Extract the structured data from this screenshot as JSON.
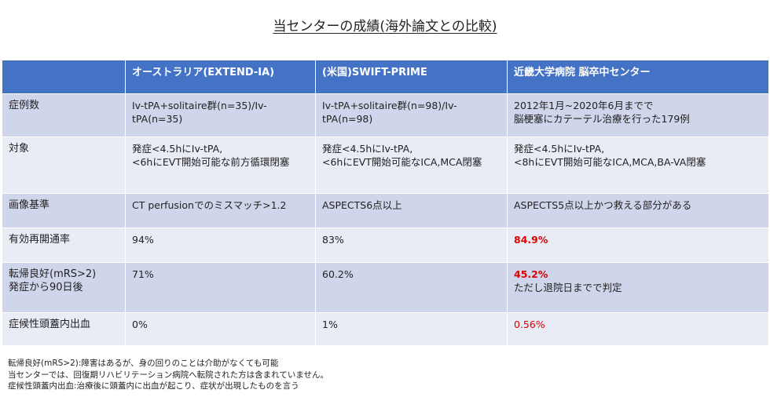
{
  "title": "当センターの成績(海外論文との比較)",
  "table": {
    "headers": [
      "",
      "オーストラリア(EXTEND-IA)",
      "(米国)SWIFT-PRIME",
      "近畿大学病院 脳卒中センター"
    ],
    "rows": [
      {
        "label": "症例数",
        "extend": "Iv-tPA+solitaire群(n=35)/Iv-tPA(n=35)",
        "swift": "Iv-tPA+solitaire群(n=98)/Iv-tPA(n=98)",
        "kindai": "2012年1月~2020年6月までで",
        "kindai2": "脳梗塞にカテーテル治療を行った179例"
      },
      {
        "label": "対象",
        "extend": "発症<4.5hにIv-tPA,",
        "extend2": "<6hにEVT開始可能な前方循環閉塞",
        "swift": "発症<4.5hにIv-tPA,",
        "swift2": "<6hにEVT開始可能なICA,MCA閉塞",
        "kindai": "発症<4.5hにIv-tPA,",
        "kindai2": "<8hにEVT開始可能なICA,MCA,BA-VA閉塞"
      },
      {
        "label": "画像基準",
        "extend": "CT perfusionでのミスマッチ>1.2",
        "swift": "ASPECTS6点以上",
        "kindai": "ASPECTS5点以上かつ救える部分がある"
      },
      {
        "label": "有効再開通率",
        "extend": "94%",
        "swift": "83%",
        "kindai": "84.9%"
      },
      {
        "label": "転帰良好(mRS>2)",
        "label2": "発症から90日後",
        "extend": "71%",
        "swift": "60.2%",
        "kindai": "45.2%",
        "kindai2": "ただし退院日までで判定"
      },
      {
        "label": "症候性頭蓋内出血",
        "extend": "0%",
        "swift": "1%",
        "kindai": "0.56%"
      }
    ]
  },
  "notes": [
    "転帰良好(mRS>2):障害はあるが、身の回りのことは介助がなくても可能",
    "当センターでは、回復期リハビリテーション病院へ転院された方は含まれていません。",
    "症候性頭蓋内出血:治療後に頭蓋内に出血が起こり、症状が出現したものを言う"
  ],
  "colors": {
    "header_bg": "#4472c4",
    "row_odd": "#cfd5ea",
    "row_even": "#e9ebf5",
    "highlight": "#e00000"
  }
}
